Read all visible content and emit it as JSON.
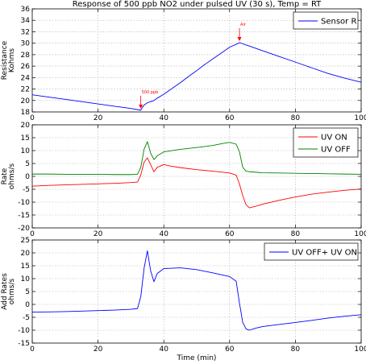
{
  "chart_data": [
    {
      "type": "line",
      "title": "Response of 500 ppb NO2 under pulsed UV (30 s), Temp = RT",
      "xlabel": "",
      "ylabel": [
        "Resistance",
        "Kohms"
      ],
      "xlim": [
        0,
        100
      ],
      "ylim": [
        18,
        36
      ],
      "xticks": [
        0,
        20,
        40,
        60,
        80,
        100
      ],
      "yticks": [
        18,
        20,
        22,
        24,
        26,
        28,
        30,
        32,
        34,
        36
      ],
      "grid": true,
      "legend": "top-right",
      "series": [
        {
          "name": "Sensor R",
          "color": "#0000ff",
          "x": [
            0,
            5,
            10,
            15,
            20,
            25,
            30,
            33,
            33.5,
            34,
            35,
            36,
            37,
            38,
            40,
            42,
            45,
            48,
            50,
            52,
            55,
            58,
            60,
            62,
            63,
            64,
            65,
            66,
            68,
            70,
            75,
            80,
            85,
            90,
            95,
            100
          ],
          "y": [
            21,
            20.6,
            20.2,
            19.8,
            19.4,
            19.0,
            18.6,
            18.3,
            18.8,
            19.2,
            19.6,
            19.8,
            20.0,
            20.4,
            21.1,
            21.9,
            23.1,
            24.4,
            25.2,
            26.1,
            27.3,
            28.5,
            29.3,
            29.8,
            30.1,
            29.9,
            29.7,
            29.5,
            29.1,
            28.7,
            27.7,
            26.7,
            25.7,
            24.7,
            23.9,
            23.2
          ]
        }
      ],
      "annotations": [
        {
          "text": "500 ppb",
          "x": 33,
          "y": 18.3,
          "color": "#ff0000"
        },
        {
          "text": "Air",
          "x": 63,
          "y": 30.1,
          "color": "#ff0000"
        }
      ]
    },
    {
      "type": "line",
      "title": "",
      "xlabel": "",
      "ylabel": [
        "Rate",
        "ohms/s"
      ],
      "xlim": [
        0,
        100
      ],
      "ylim": [
        -20,
        20
      ],
      "xticks": [
        0,
        20,
        40,
        60,
        80,
        100
      ],
      "yticks": [
        -20,
        -15,
        -10,
        -5,
        0,
        5,
        10,
        15,
        20
      ],
      "grid": true,
      "legend": "top-right",
      "series": [
        {
          "name": "UV ON",
          "color": "#ff0000",
          "x": [
            0,
            5,
            10,
            15,
            20,
            25,
            30,
            32,
            33,
            34,
            35,
            36,
            37,
            38,
            40,
            42,
            45,
            50,
            55,
            60,
            62,
            63,
            64,
            65,
            66,
            68,
            70,
            75,
            80,
            85,
            90,
            95,
            100
          ],
          "y": [
            -3.8,
            -3.5,
            -3.3,
            -3.1,
            -2.9,
            -2.7,
            -2.4,
            -2.2,
            0.5,
            5.5,
            7.2,
            4.5,
            1.8,
            3.5,
            4.6,
            4.0,
            3.4,
            2.6,
            2.0,
            1.3,
            0.5,
            -3.0,
            -7.5,
            -11.0,
            -12.2,
            -11.6,
            -10.8,
            -9.3,
            -8.0,
            -6.9,
            -6.1,
            -5.4,
            -4.9
          ]
        },
        {
          "name": "UV OFF",
          "color": "#008000",
          "x": [
            0,
            5,
            10,
            15,
            20,
            25,
            30,
            32,
            33,
            34,
            35,
            36,
            37,
            38,
            40,
            45,
            50,
            55,
            58,
            60,
            62,
            63,
            64,
            65,
            66,
            68,
            70,
            75,
            80,
            85,
            90,
            95,
            100
          ],
          "y": [
            0.9,
            0.9,
            0.8,
            0.8,
            0.8,
            0.7,
            0.7,
            0.8,
            3.5,
            10.5,
            13.5,
            9.0,
            6.5,
            8.0,
            9.5,
            10.5,
            11.2,
            12.0,
            12.8,
            13.2,
            12.5,
            9.5,
            3.5,
            2.0,
            1.8,
            1.6,
            1.4,
            1.3,
            1.2,
            1.1,
            1.0,
            0.9,
            0.8
          ]
        }
      ]
    },
    {
      "type": "line",
      "title": "",
      "xlabel": "Time (min)",
      "ylabel": [
        "Add Rates",
        "ohms/s"
      ],
      "xlim": [
        0,
        100
      ],
      "ylim": [
        -15,
        25
      ],
      "xticks": [
        0,
        20,
        40,
        60,
        80,
        100
      ],
      "yticks": [
        -15,
        -10,
        -5,
        0,
        5,
        10,
        15,
        20,
        25
      ],
      "grid": true,
      "legend": "top-right",
      "series": [
        {
          "name": "UV OFF+ UV ON",
          "color": "#0000ff",
          "x": [
            0,
            5,
            10,
            15,
            20,
            25,
            30,
            32,
            33,
            34,
            35,
            36,
            37,
            38,
            40,
            45,
            50,
            55,
            60,
            62,
            63,
            64,
            65,
            66,
            68,
            70,
            75,
            80,
            85,
            90,
            95,
            100
          ],
          "y": [
            -3.0,
            -2.9,
            -2.8,
            -2.6,
            -2.4,
            -2.2,
            -1.9,
            -1.6,
            3.0,
            14.0,
            20.8,
            13.0,
            8.8,
            12.0,
            13.9,
            14.2,
            13.5,
            12.2,
            10.8,
            9.0,
            0.5,
            -7.0,
            -9.5,
            -10.0,
            -9.2,
            -8.6,
            -7.8,
            -7.0,
            -6.2,
            -5.3,
            -4.6,
            -4.0
          ]
        }
      ]
    }
  ]
}
